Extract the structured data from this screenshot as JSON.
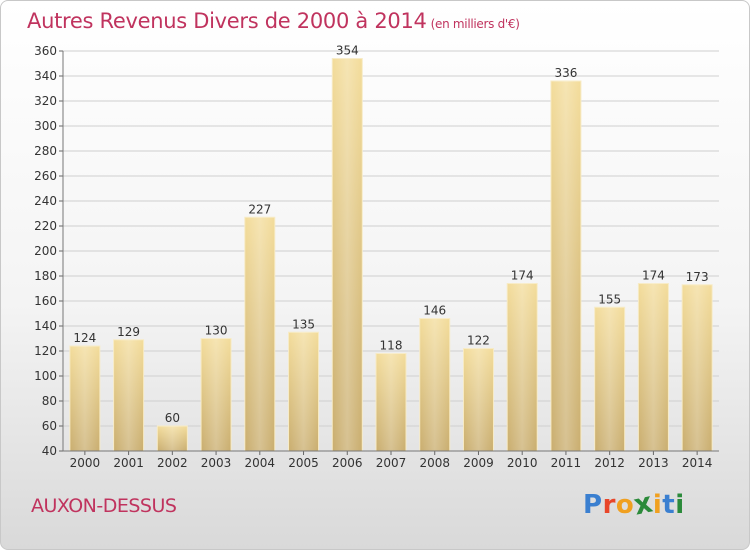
{
  "header": {
    "title": "Autres Revenus Divers de 2000 à 2014",
    "unit": "(en milliers d'€)"
  },
  "footer": {
    "city": "AUXON-DESSUS",
    "logo_letters": [
      "P",
      "r",
      "o",
      "x",
      "i",
      "t",
      "i"
    ],
    "logo_colors": [
      "#3a7fd0",
      "#e8462a",
      "#f0a020",
      "#2b8a3a",
      "#f0a020",
      "#3a7fd0",
      "#2b8a3a"
    ]
  },
  "chart_data": {
    "type": "bar",
    "categories": [
      "2000",
      "2001",
      "2002",
      "2003",
      "2004",
      "2005",
      "2006",
      "2007",
      "2008",
      "2009",
      "2010",
      "2011",
      "2012",
      "2013",
      "2014"
    ],
    "values": [
      124,
      129,
      60,
      130,
      227,
      135,
      354,
      118,
      146,
      122,
      174,
      336,
      155,
      174,
      173
    ],
    "title": "Autres Revenus Divers de 2000 à 2014",
    "xlabel": "",
    "ylabel": "",
    "ylim": [
      40,
      360
    ],
    "yticks": [
      40,
      60,
      80,
      100,
      120,
      140,
      160,
      180,
      200,
      220,
      240,
      260,
      280,
      300,
      320,
      340,
      360
    ],
    "grid": true,
    "colors": {
      "bar_top": "#f3dc9a",
      "bar_bottom": "#c9ad6e",
      "grid": "#cfcfcf"
    }
  }
}
